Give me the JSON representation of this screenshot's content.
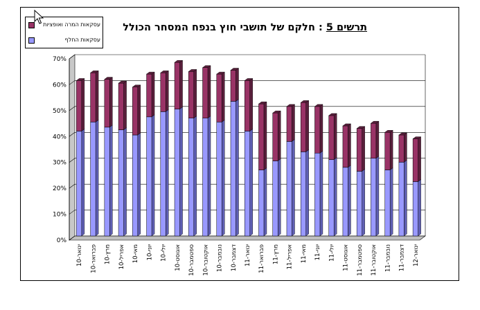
{
  "chart_data": {
    "type": "bar",
    "stacked": true,
    "title_parts": [
      "תרשים 5",
      ":",
      "חלקם של תושבי חוץ בנפח המסחר הכולל"
    ],
    "categories": [
      "ינואר-10",
      "פברואר-10",
      "מרץ-10",
      "אפריל-10",
      "מאי-10",
      "יוני-10",
      "יולי-10",
      "אוגוסט-10",
      "ספטמבר-10",
      "אוקטובר-10",
      "נובמבר-10",
      "דצמבר-10",
      "ינואר-11",
      "פברואר-11",
      "מרץ-11",
      "אפריל-11",
      "מאי-11",
      "יוני-11",
      "יולי-11",
      "אוגוסט-11",
      "ספטמבר-11",
      "אוקטובר-11",
      "נובמבר-11",
      "דצמבר-11",
      "ינואר-12"
    ],
    "series": [
      {
        "name": "עסקאות החלף",
        "color": "#9999ff",
        "shade": "#5f5fb4",
        "values": [
          40.5,
          44,
          42,
          41,
          39,
          46,
          48,
          49,
          45.5,
          45.5,
          44,
          52,
          40.5,
          25.5,
          29,
          36.5,
          32.5,
          32,
          29.5,
          26.5,
          25,
          30,
          25.5,
          28.5,
          21
        ]
      },
      {
        "name": "עסקאות המרה ואופציות",
        "color": "#993366",
        "shade": "#5a1f3c",
        "values": [
          19.5,
          19,
          18.5,
          18,
          18.5,
          16.5,
          15,
          18,
          18,
          19.5,
          18.5,
          12,
          19.5,
          25.5,
          18.5,
          13.5,
          19,
          18,
          17,
          16,
          16.5,
          13.5,
          14.5,
          10.5,
          16.5
        ]
      }
    ],
    "y_axis": {
      "min": 0,
      "max": 70,
      "step": 10,
      "unit": "%",
      "tick_labels": [
        "0%",
        "10%",
        "20%",
        "30%",
        "40%",
        "50%",
        "60%",
        "70%"
      ]
    },
    "grid": true,
    "legend_position": "top-left"
  },
  "cursor_icon": "arrow-pointer"
}
